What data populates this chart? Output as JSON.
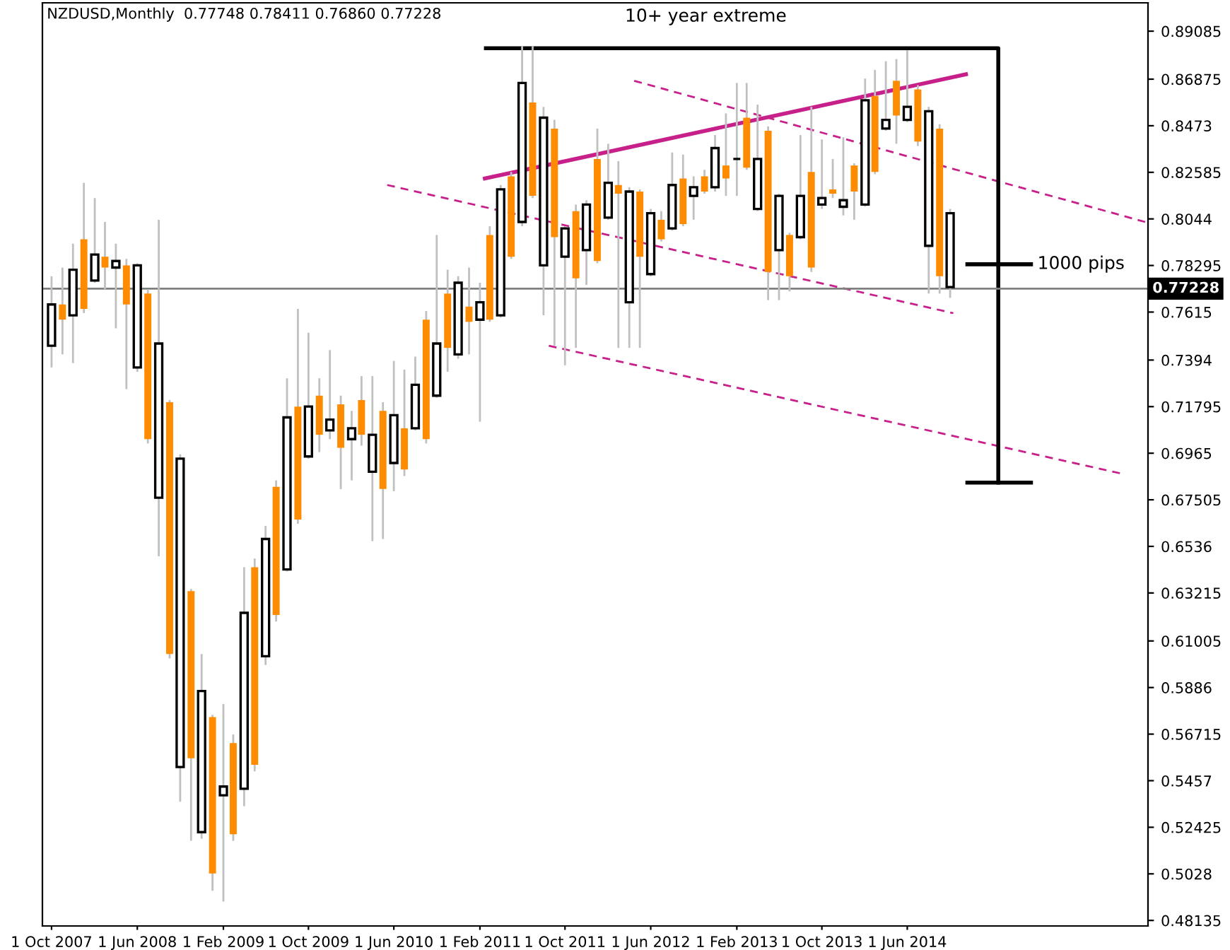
{
  "chart_data": {
    "type": "candlestick",
    "title": "NZDUSD,Monthly  0.77748 0.78411 0.76860 0.77228",
    "x": [
      "2007-10",
      "2007-11",
      "2007-12",
      "2008-01",
      "2008-02",
      "2008-03",
      "2008-04",
      "2008-05",
      "2008-06",
      "2008-07",
      "2008-08",
      "2008-09",
      "2008-10",
      "2008-11",
      "2008-12",
      "2009-01",
      "2009-02",
      "2009-03",
      "2009-04",
      "2009-05",
      "2009-06",
      "2009-07",
      "2009-08",
      "2009-09",
      "2009-10",
      "2009-11",
      "2009-12",
      "2010-01",
      "2010-02",
      "2010-03",
      "2010-04",
      "2010-05",
      "2010-06",
      "2010-07",
      "2010-08",
      "2010-09",
      "2010-10",
      "2010-11",
      "2010-12",
      "2011-01",
      "2011-02",
      "2011-03",
      "2011-04",
      "2011-05",
      "2011-06",
      "2011-07",
      "2011-08",
      "2011-09",
      "2011-10",
      "2011-11",
      "2011-12",
      "2012-01",
      "2012-02",
      "2012-03",
      "2012-04",
      "2012-05",
      "2012-06",
      "2012-07",
      "2012-08",
      "2012-09",
      "2012-10",
      "2012-11",
      "2012-12",
      "2013-01",
      "2013-02",
      "2013-03",
      "2013-04",
      "2013-05",
      "2013-06",
      "2013-07",
      "2013-08",
      "2013-09",
      "2013-10",
      "2013-11",
      "2013-12",
      "2014-01",
      "2014-02",
      "2014-03",
      "2014-04",
      "2014-05",
      "2014-06",
      "2014-07",
      "2014-08",
      "2014-09",
      "2014-10"
    ],
    "ohlc": [
      [
        0.746,
        0.778,
        0.736,
        0.765
      ],
      [
        0.765,
        0.782,
        0.742,
        0.758
      ],
      [
        0.76,
        0.793,
        0.738,
        0.781
      ],
      [
        0.795,
        0.821,
        0.761,
        0.763
      ],
      [
        0.776,
        0.814,
        0.775,
        0.788
      ],
      [
        0.787,
        0.803,
        0.772,
        0.782
      ],
      [
        0.782,
        0.793,
        0.754,
        0.785
      ],
      [
        0.783,
        0.786,
        0.726,
        0.765
      ],
      [
        0.736,
        0.784,
        0.734,
        0.783
      ],
      [
        0.77,
        0.772,
        0.701,
        0.703
      ],
      [
        0.676,
        0.804,
        0.649,
        0.747
      ],
      [
        0.72,
        0.721,
        0.602,
        0.604
      ],
      [
        0.552,
        0.696,
        0.536,
        0.694
      ],
      [
        0.633,
        0.634,
        0.518,
        0.556
      ],
      [
        0.522,
        0.604,
        0.519,
        0.587
      ],
      [
        0.575,
        0.576,
        0.495,
        0.503
      ],
      [
        0.539,
        0.581,
        0.49,
        0.543
      ],
      [
        0.563,
        0.567,
        0.518,
        0.521
      ],
      [
        0.542,
        0.644,
        0.534,
        0.623
      ],
      [
        0.644,
        0.648,
        0.55,
        0.553
      ],
      [
        0.603,
        0.663,
        0.599,
        0.657
      ],
      [
        0.681,
        0.684,
        0.619,
        0.622
      ],
      [
        0.643,
        0.731,
        0.642,
        0.713
      ],
      [
        0.718,
        0.763,
        0.664,
        0.666
      ],
      [
        0.695,
        0.752,
        0.694,
        0.718
      ],
      [
        0.723,
        0.731,
        0.697,
        0.705
      ],
      [
        0.707,
        0.744,
        0.703,
        0.712
      ],
      [
        0.719,
        0.723,
        0.68,
        0.699
      ],
      [
        0.703,
        0.716,
        0.684,
        0.708
      ],
      [
        0.721,
        0.732,
        0.7,
        0.705
      ],
      [
        0.688,
        0.732,
        0.656,
        0.705
      ],
      [
        0.716,
        0.72,
        0.657,
        0.68
      ],
      [
        0.692,
        0.739,
        0.679,
        0.714
      ],
      [
        0.708,
        0.735,
        0.686,
        0.689
      ],
      [
        0.708,
        0.741,
        0.707,
        0.728
      ],
      [
        0.758,
        0.762,
        0.701,
        0.703
      ],
      [
        0.723,
        0.797,
        0.722,
        0.747
      ],
      [
        0.77,
        0.781,
        0.734,
        0.745
      ],
      [
        0.742,
        0.778,
        0.74,
        0.775
      ],
      [
        0.764,
        0.782,
        0.742,
        0.757
      ],
      [
        0.758,
        0.775,
        0.711,
        0.766
      ],
      [
        0.797,
        0.801,
        0.757,
        0.758
      ],
      [
        0.76,
        0.82,
        0.759,
        0.818
      ],
      [
        0.824,
        0.826,
        0.786,
        0.787
      ],
      [
        0.803,
        0.884,
        0.801,
        0.867
      ],
      [
        0.858,
        0.884,
        0.814,
        0.815
      ],
      [
        0.783,
        0.856,
        0.76,
        0.851
      ],
      [
        0.846,
        0.85,
        0.746,
        0.796
      ],
      [
        0.787,
        0.801,
        0.737,
        0.8
      ],
      [
        0.808,
        0.811,
        0.745,
        0.777
      ],
      [
        0.79,
        0.813,
        0.774,
        0.811
      ],
      [
        0.832,
        0.846,
        0.784,
        0.785
      ],
      [
        0.805,
        0.839,
        0.804,
        0.821
      ],
      [
        0.82,
        0.831,
        0.745,
        0.816
      ],
      [
        0.766,
        0.819,
        0.745,
        0.817
      ],
      [
        0.817,
        0.818,
        0.745,
        0.787
      ],
      [
        0.779,
        0.809,
        0.778,
        0.807
      ],
      [
        0.804,
        0.808,
        0.794,
        0.795
      ],
      [
        0.8,
        0.835,
        0.799,
        0.82
      ],
      [
        0.823,
        0.834,
        0.801,
        0.802
      ],
      [
        0.815,
        0.824,
        0.804,
        0.819
      ],
      [
        0.824,
        0.827,
        0.816,
        0.817
      ],
      [
        0.819,
        0.843,
        0.817,
        0.837
      ],
      [
        0.829,
        0.853,
        0.815,
        0.823
      ],
      [
        0.832,
        0.867,
        0.815,
        0.832
      ],
      [
        0.851,
        0.867,
        0.827,
        0.828
      ],
      [
        0.809,
        0.857,
        0.808,
        0.832
      ],
      [
        0.845,
        0.847,
        0.767,
        0.78
      ],
      [
        0.79,
        0.816,
        0.767,
        0.815
      ],
      [
        0.797,
        0.798,
        0.771,
        0.778
      ],
      [
        0.796,
        0.843,
        0.795,
        0.815
      ],
      [
        0.826,
        0.856,
        0.78,
        0.782
      ],
      [
        0.811,
        0.841,
        0.809,
        0.814
      ],
      [
        0.818,
        0.832,
        0.814,
        0.816
      ],
      [
        0.81,
        0.842,
        0.806,
        0.813
      ],
      [
        0.829,
        0.83,
        0.804,
        0.817
      ],
      [
        0.811,
        0.869,
        0.81,
        0.859
      ],
      [
        0.861,
        0.873,
        0.825,
        0.826
      ],
      [
        0.846,
        0.877,
        0.845,
        0.85
      ],
      [
        0.868,
        0.878,
        0.839,
        0.852
      ],
      [
        0.85,
        0.882,
        0.849,
        0.856
      ],
      [
        0.864,
        0.866,
        0.838,
        0.84
      ],
      [
        0.792,
        0.856,
        0.77,
        0.854
      ],
      [
        0.846,
        0.848,
        0.77,
        0.778
      ],
      [
        0.773,
        0.809,
        0.768,
        0.807
      ]
    ],
    "series": [
      {
        "type": "line",
        "color": "#c8208a",
        "line_style": "solid",
        "x": [
          "2011-02-15",
          "2014-11-15"
        ],
        "values": [
          0.823,
          0.871
        ]
      },
      {
        "type": "line",
        "color": "#c8208a",
        "line_style": "dashed",
        "x": [
          "2012-04-15",
          "2016-04-08"
        ],
        "values": [
          0.868,
          0.803
        ]
      },
      {
        "type": "line",
        "color": "#c8208a",
        "line_style": "dashed",
        "x": [
          "2010-05-13",
          "2014-10-10"
        ],
        "values": [
          0.82,
          0.761
        ]
      },
      {
        "type": "line",
        "color": "#c8208a",
        "line_style": "dashed",
        "x": [
          "2011-08-16",
          "2016-02-04"
        ],
        "values": [
          0.746,
          0.687
        ]
      },
      {
        "type": "line",
        "color": "#000000",
        "line_style": "solid",
        "x": [
          "2011-02-18",
          "2015-02-15",
          "2015-02-15"
        ],
        "values": [
          0.883,
          0.883,
          0.683
        ]
      },
      {
        "type": "line",
        "color": "#000000",
        "line_style": "solid",
        "x": [
          "2014-11-19",
          "2015-05-19"
        ],
        "values": [
          0.683,
          0.683
        ]
      },
      {
        "type": "line",
        "color": "#000000",
        "line_style": "solid",
        "x": [
          "2014-11-19",
          "2015-05-19"
        ],
        "values": [
          0.7835,
          0.7835
        ]
      }
    ],
    "annotations": [
      "10+ year extreme",
      "1000 pips"
    ],
    "ref_lines": [
      {
        "axis": "y",
        "value": 0.77228,
        "label": "0.77228",
        "color": "#808080"
      }
    ],
    "xlim": [
      "2007-09-05",
      "2016-04-16"
    ],
    "xticks": [
      {
        "value": "2007-10-01",
        "label": "1 Oct 2007"
      },
      {
        "value": "2008-06-01",
        "label": "1 Jun 2008"
      },
      {
        "value": "2009-02-01",
        "label": "1 Feb 2009"
      },
      {
        "value": "2009-10-01",
        "label": "1 Oct 2009"
      },
      {
        "value": "2010-06-01",
        "label": "1 Jun 2010"
      },
      {
        "value": "2011-02-01",
        "label": "1 Feb 2011"
      },
      {
        "value": "2011-10-01",
        "label": "1 Oct 2011"
      },
      {
        "value": "2012-06-01",
        "label": "1 Jun 2012"
      },
      {
        "value": "2013-02-01",
        "label": "1 Feb 2013"
      },
      {
        "value": "2013-10-01",
        "label": "1 Oct 2013"
      },
      {
        "value": "2014-06-01",
        "label": "1 Jun 2014"
      }
    ],
    "ylim": [
      0.4788,
      0.9039
    ],
    "yticks": [
      0.89085,
      0.86875,
      0.8473,
      0.82585,
      0.8044,
      0.78295,
      0.7615,
      0.7394,
      0.71795,
      0.6965,
      0.67505,
      0.6536,
      0.63215,
      0.61005,
      0.5886,
      0.56715,
      0.5457,
      0.52425,
      0.5028,
      0.48135
    ],
    "grid": false,
    "legend": false
  }
}
